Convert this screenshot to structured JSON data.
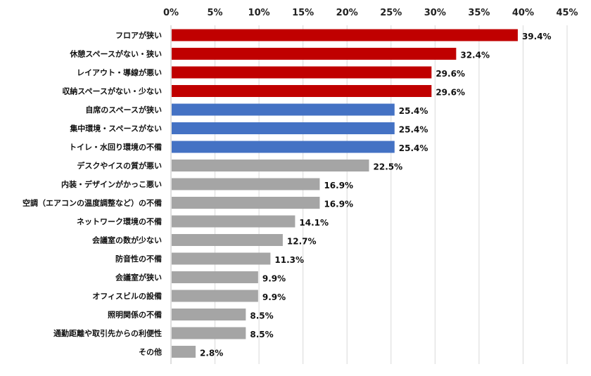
{
  "chart_data": {
    "type": "bar",
    "orientation": "horizontal",
    "title": "",
    "xlabel": "",
    "ylabel": "",
    "xlim": [
      0,
      45
    ],
    "x_ticks": [
      "0%",
      "5%",
      "10%",
      "15%",
      "20%",
      "25%",
      "30%",
      "35%",
      "40%",
      "45%"
    ],
    "x_tick_values": [
      0,
      5,
      10,
      15,
      20,
      25,
      30,
      35,
      40,
      45
    ],
    "grid": "vertical",
    "categories": [
      "フロアが狭い",
      "休憩スペースがない・狭い",
      "レイアウト・導線が悪い",
      "収納スペースがない・少ない",
      "自席のスペースが狭い",
      "集中環境・スペースがない",
      "トイレ・水回り環境の不備",
      "デスクやイスの質が悪い",
      "内装・デザインがかっこ悪い",
      "空調（エアコンの温度調整など）の不備",
      "ネットワーク環境の不備",
      "会議室の数が少ない",
      "防音性の不備",
      "会議室が狭い",
      "オフィスビルの設備",
      "照明関係の不備",
      "通勤距離や取引先からの利便性",
      "その他"
    ],
    "values": [
      39.4,
      32.4,
      29.6,
      29.6,
      25.4,
      25.4,
      25.4,
      22.5,
      16.9,
      16.9,
      14.1,
      12.7,
      11.3,
      9.9,
      9.9,
      8.5,
      8.5,
      2.8
    ],
    "value_labels": [
      "39.4%",
      "32.4%",
      "29.6%",
      "29.6%",
      "25.4%",
      "25.4%",
      "25.4%",
      "22.5%",
      "16.9%",
      "16.9%",
      "14.1%",
      "12.7%",
      "11.3%",
      "9.9%",
      "9.9%",
      "8.5%",
      "8.5%",
      "2.8%"
    ],
    "bar_colors": [
      "#c00000",
      "#c00000",
      "#c00000",
      "#c00000",
      "#4472c4",
      "#4472c4",
      "#4472c4",
      "#a5a5a5",
      "#a5a5a5",
      "#a5a5a5",
      "#a5a5a5",
      "#a5a5a5",
      "#a5a5a5",
      "#a5a5a5",
      "#a5a5a5",
      "#a5a5a5",
      "#a5a5a5",
      "#a5a5a5"
    ],
    "grid_color": "#d9d9d9",
    "axis_color": "#bfbfbf"
  }
}
